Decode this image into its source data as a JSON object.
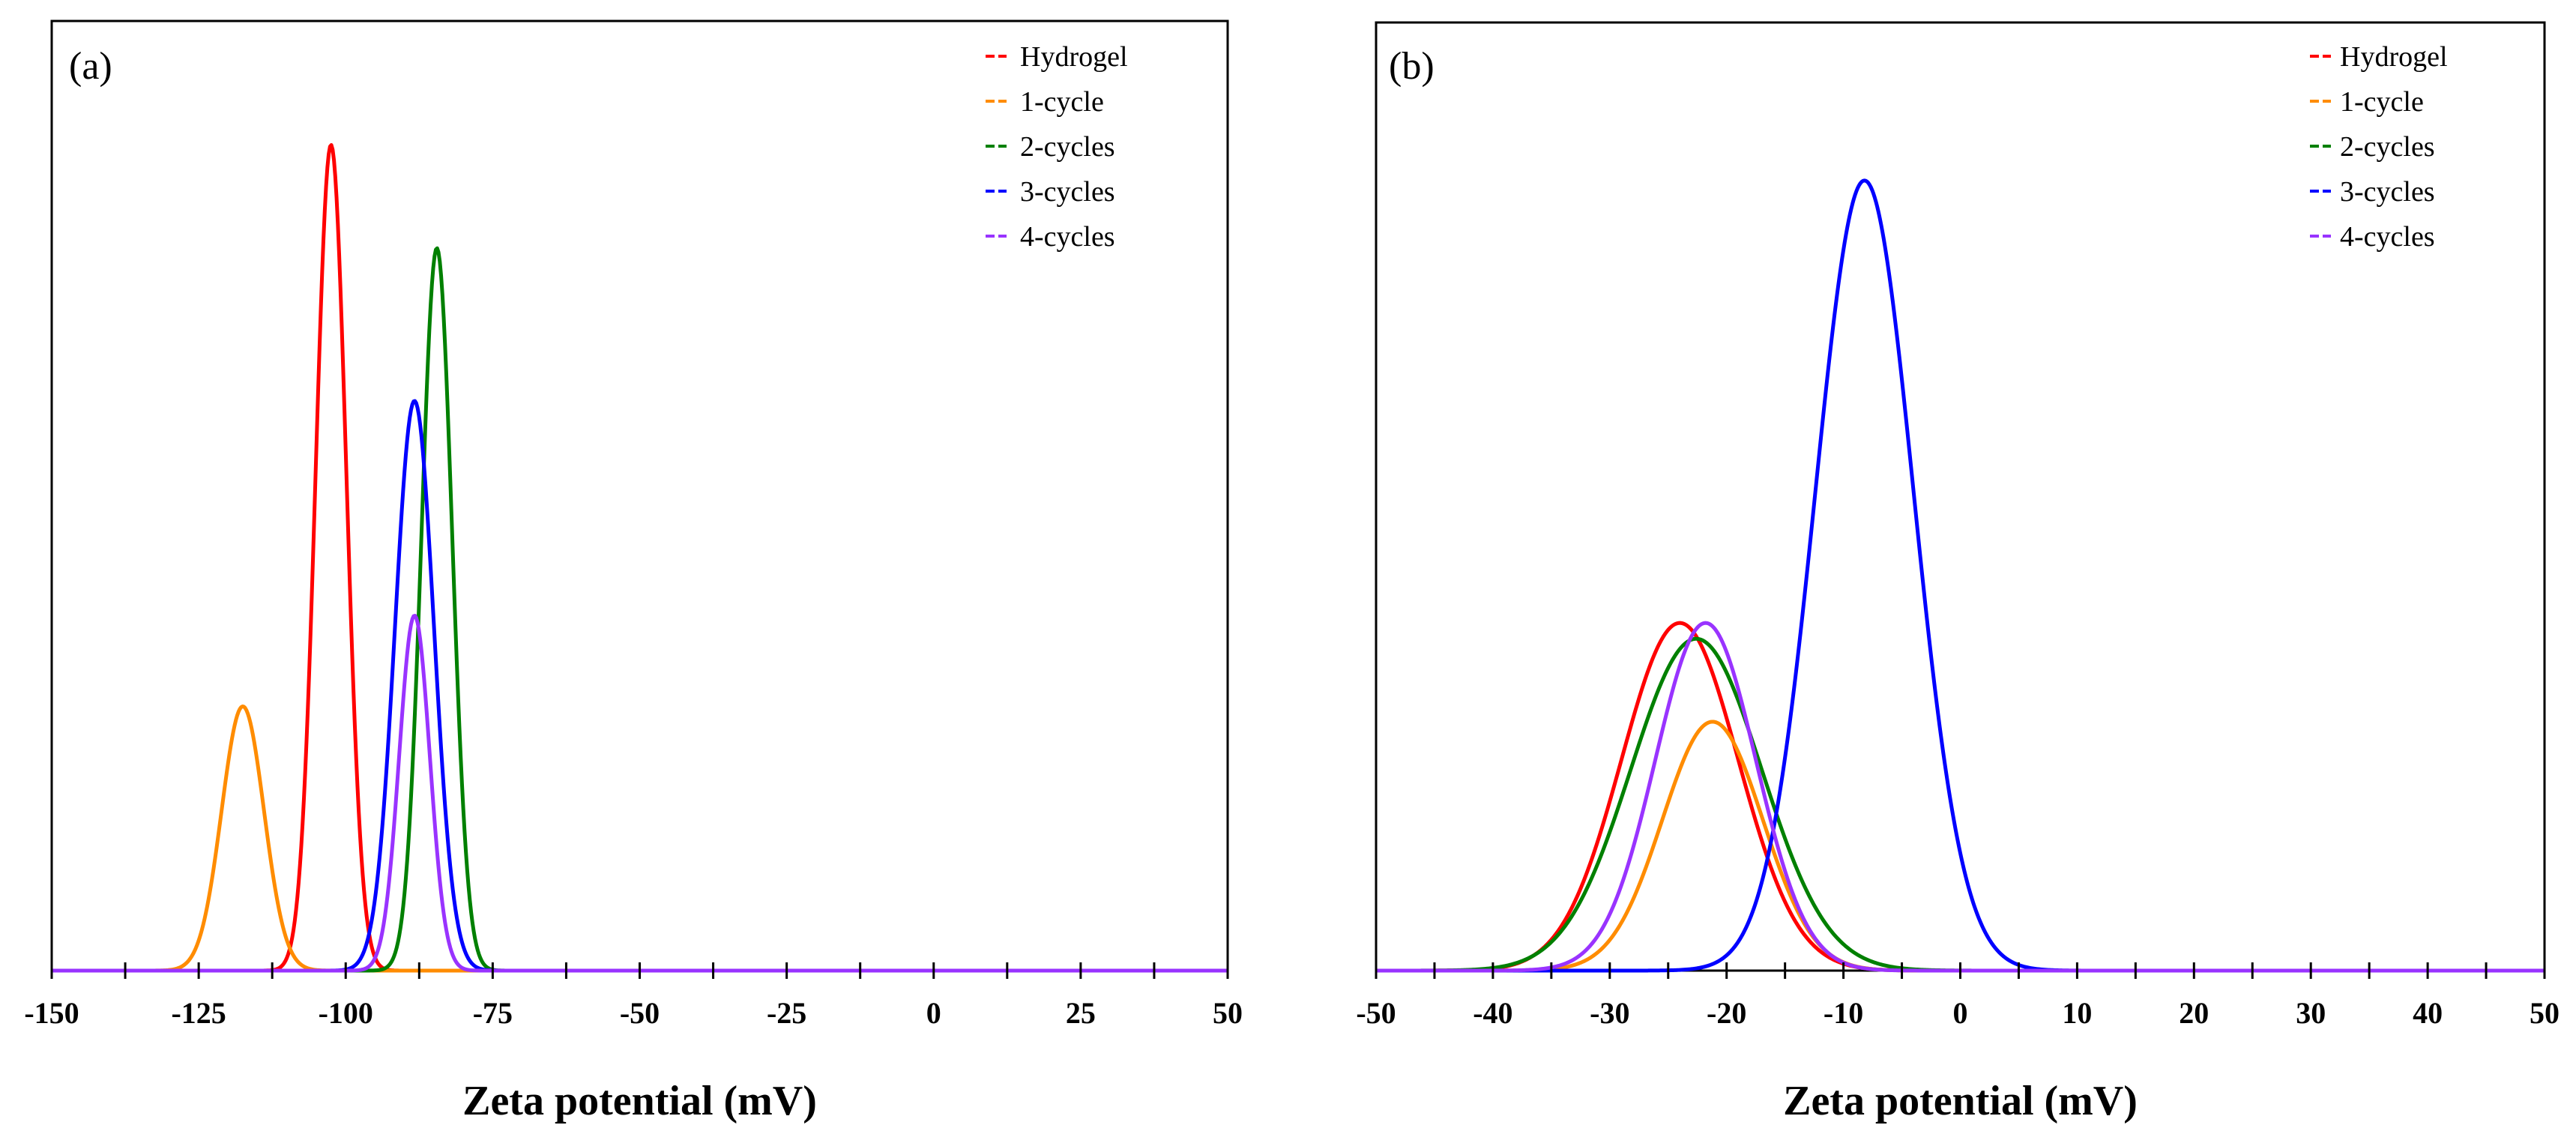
{
  "chart_data": [
    {
      "panel_label": "(a)",
      "type": "line",
      "xlabel": "Zeta potential (mV)",
      "ylabel": "",
      "xlim": [
        -150,
        50
      ],
      "ylim": [
        0,
        1.15
      ],
      "grid": false,
      "legend_position": "top-right",
      "x_ticks": [
        -150,
        -125,
        -100,
        -75,
        -50,
        -25,
        0,
        25,
        50
      ],
      "x_tick_labels": [
        "-150",
        "-125",
        "-100",
        "-75",
        "-50",
        "-25",
        "0",
        "25",
        "50"
      ],
      "minor_tick_step": 12.5,
      "series": [
        {
          "name": "Hydrogel",
          "color": "#ff0000",
          "peak_x": -102.5,
          "peak_y": 1.0,
          "sigma": 2.6
        },
        {
          "name": "1-cycle",
          "color": "#ff8c00",
          "peak_x": -117.5,
          "peak_y": 0.32,
          "sigma": 3.6
        },
        {
          "name": "2-cycles",
          "color": "#008000",
          "peak_x": -84.5,
          "peak_y": 0.875,
          "sigma": 2.6
        },
        {
          "name": "3-cycles",
          "color": "#0000ff",
          "peak_x": -88.3,
          "peak_y": 0.69,
          "sigma": 3.3
        },
        {
          "name": "4-cycles",
          "color": "#9933ff",
          "peak_x": -88.3,
          "peak_y": 0.43,
          "sigma": 2.6
        }
      ]
    },
    {
      "panel_label": "(b)",
      "type": "line",
      "xlabel": "Zeta potential (mV)",
      "ylabel": "",
      "xlim": [
        -50,
        50
      ],
      "ylim": [
        0,
        1.2
      ],
      "grid": false,
      "legend_position": "top-right",
      "x_ticks": [
        -50,
        -40,
        -30,
        -20,
        -10,
        0,
        10,
        20,
        30,
        40,
        50
      ],
      "x_tick_labels": [
        "-50",
        "-40",
        "-30",
        "-20",
        "-10",
        "0",
        "10",
        "20",
        "30",
        "40",
        "50"
      ],
      "minor_tick_step": 5,
      "series": [
        {
          "name": "Hydrogel",
          "color": "#ff0000",
          "peak_x": -24.0,
          "peak_y": 0.44,
          "sigma": 5.0
        },
        {
          "name": "1-cycle",
          "color": "#ff8c00",
          "peak_x": -21.2,
          "peak_y": 0.315,
          "sigma": 4.3
        },
        {
          "name": "2-cycles",
          "color": "#008000",
          "peak_x": -22.6,
          "peak_y": 0.42,
          "sigma": 5.6
        },
        {
          "name": "3-cycles",
          "color": "#0000ff",
          "peak_x": -8.2,
          "peak_y": 1.0,
          "sigma": 4.2
        },
        {
          "name": "4-cycles",
          "color": "#9933ff",
          "peak_x": -21.8,
          "peak_y": 0.44,
          "sigma": 4.3
        }
      ]
    }
  ]
}
